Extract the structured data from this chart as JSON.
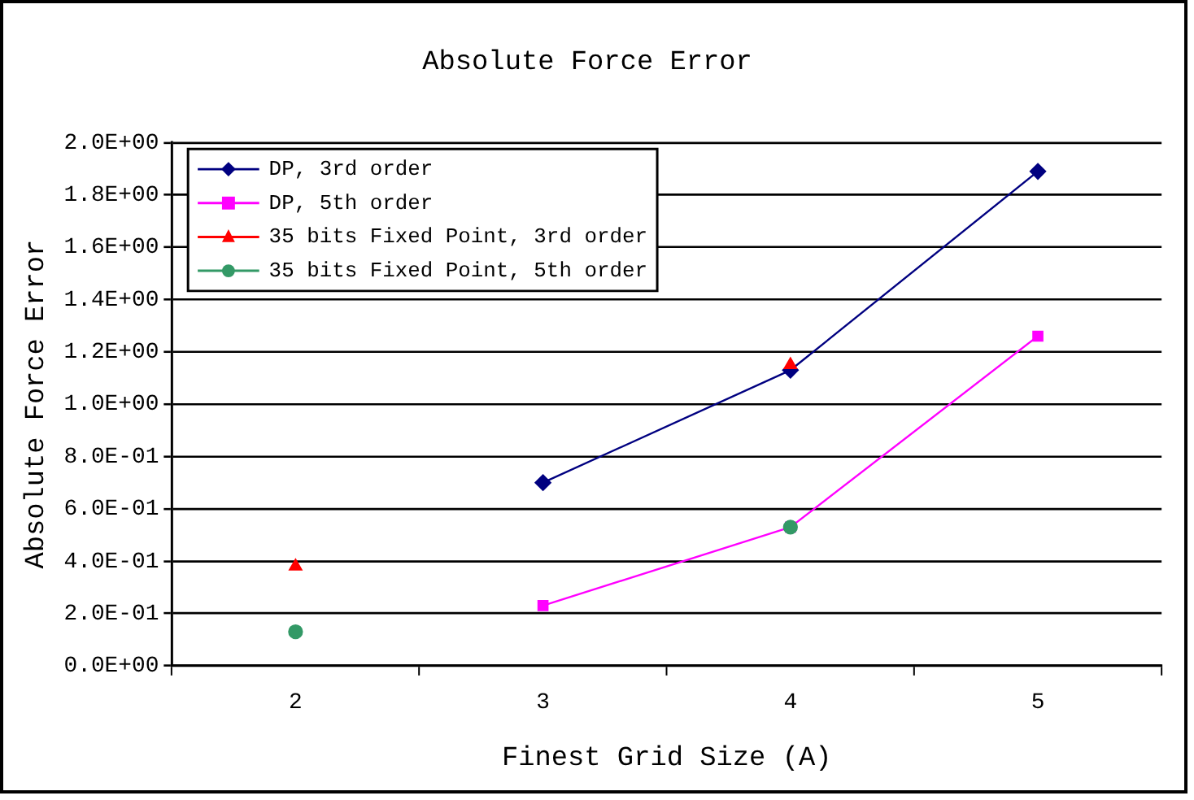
{
  "chart_data": {
    "type": "line",
    "title": "Absolute Force Error",
    "xlabel": "Finest Grid Size (A)",
    "ylabel": "Absolute Force Error",
    "categories": [
      "2",
      "3",
      "4",
      "5"
    ],
    "series": [
      {
        "name": "DP, 3rd order",
        "color": "#000080",
        "marker": "diamond",
        "values": [
          null,
          0.7,
          1.13,
          1.89
        ]
      },
      {
        "name": "DP, 5th order",
        "color": "#ff00ff",
        "marker": "square",
        "values": [
          null,
          0.23,
          0.53,
          1.26
        ]
      },
      {
        "name": "35 bits Fixed Point, 3rd order",
        "type": "scatter",
        "color": "#ff0000",
        "marker": "triangle",
        "values": [
          0.38,
          null,
          1.15,
          null
        ]
      },
      {
        "name": "35 bits Fixed Point, 5th order",
        "type": "scatter",
        "color": "#339966",
        "marker": "circle",
        "values": [
          0.13,
          null,
          0.53,
          null
        ]
      }
    ],
    "ylim": [
      0,
      2
    ],
    "yticks": [
      {
        "value": 0,
        "label": "0.0E+00"
      },
      {
        "value": 0.2,
        "label": "2.0E-01"
      },
      {
        "value": 0.4,
        "label": "4.0E-01"
      },
      {
        "value": 0.6,
        "label": "6.0E-01"
      },
      {
        "value": 0.8,
        "label": "8.0E-01"
      },
      {
        "value": 1,
        "label": "1.0E+00"
      },
      {
        "value": 1.2,
        "label": "1.2E+00"
      },
      {
        "value": 1.4,
        "label": "1.4E+00"
      },
      {
        "value": 1.6,
        "label": "1.6E+00"
      },
      {
        "value": 1.8,
        "label": "1.8E+00"
      },
      {
        "value": 2,
        "label": "2.0E+00"
      }
    ],
    "grid": "y",
    "legend": "top left",
    "line_style": "solid"
  }
}
